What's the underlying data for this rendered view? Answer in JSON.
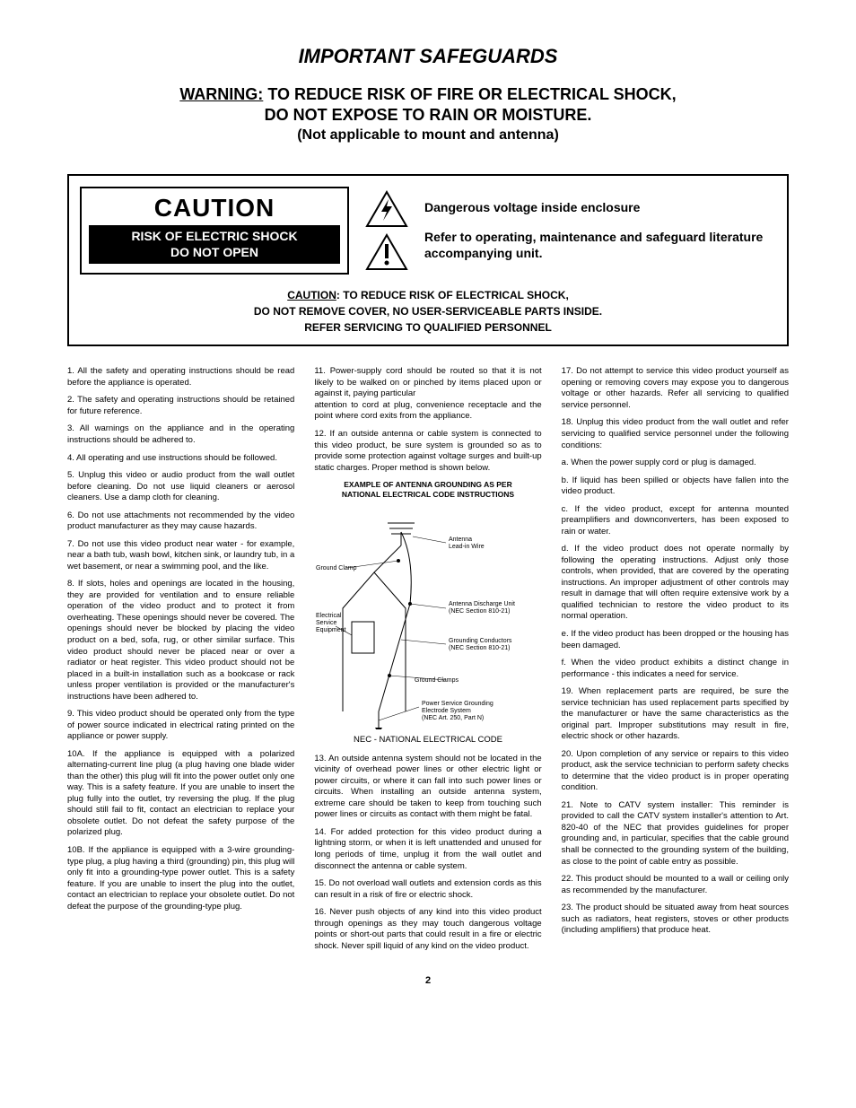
{
  "title": "IMPORTANT SAFEGUARDS",
  "warning_prefix": "WARNING:",
  "warning_line1": " TO REDUCE RISK OF FIRE OR ELECTRICAL SHOCK,",
  "warning_line2": "DO NOT EXPOSE TO RAIN OR MOISTURE.",
  "warning_sub": "(Not applicable to mount and antenna)",
  "caution_box_title": "CAUTION",
  "caution_box_line1": "RISK OF ELECTRIC SHOCK",
  "caution_box_line2": "DO NOT OPEN",
  "danger_text": "Dangerous voltage inside enclosure",
  "refer_text": "Refer to operating, maintenance and safeguard literature accompanying unit.",
  "caution_bottom_prefix": "CAUTION",
  "caution_bottom_rest1": ": TO REDUCE RISK OF ELECTRICAL SHOCK,",
  "caution_bottom_line2": "DO NOT REMOVE COVER, NO USER-SERVICEABLE PARTS INSIDE.",
  "caution_bottom_line3": "REFER SERVICING TO QUALIFIED PERSONNEL",
  "diagram_title_line1": "EXAMPLE OF ANTENNA GROUNDING AS PER",
  "diagram_title_line2": "NATIONAL ELECTRICAL CODE INSTRUCTIONS",
  "diagram_labels": {
    "antenna_lead": "Antenna Lead-in Wire",
    "ground_clamp": "Ground Clamp",
    "electrical_service": "Electrical Service Equipment",
    "discharge_unit": "Antenna Discharge Unit (NEC Section 810-21)",
    "grounding_conductors": "Grounding Conductors (NEC Section 810-21)",
    "ground_clamps": "Ground Clamps",
    "power_service": "Power Service Grounding Electrode System (NEC Art. 250, Part N)"
  },
  "diagram_caption": "NEC - NATIONAL ELECTRICAL CODE",
  "paragraphs_col1": [
    "1. All the safety and operating instructions should be read before the appliance is operated.",
    "2. The safety and operating instructions should be retained for future reference.",
    "3. All warnings on the appliance and in  the operating instructions should be adhered to.",
    "4. All operating and use instructions should be followed.",
    "5. Unplug this video or audio product from the wall outlet before cleaning. Do not use liquid cleaners or aerosol cleaners. Use a damp cloth for cleaning.",
    "6. Do not use attachments not recommended by the video product manufacturer as they may cause hazards.",
    "7. Do not use this video product near water - for example, near a bath tub, wash bowl, kitchen sink, or laundry tub, in a wet basement, or near a swimming pool, and the like.",
    "8. If slots, holes and openings are located in the housing, they are provided for ventilation and to ensure reliable operation of the video product and to protect it from overheating. These openings should never be covered. The openings should never be blocked by placing the video product on a bed, sofa, rug, or other similar surface. This video product should never be placed near or over a radiator or heat register. This video product should not be placed in a built-in installation such as a bookcase or rack unless proper ventilation is provided or the manufacturer's instructions have been adhered to.",
    "9. This video product should be operated only from the type of power source indicated in electrical rating printed on the appliance or power supply.",
    "10A. If the appliance is equipped with a polarized alternating-current line plug (a plug having one blade wider than the other) this plug will fit into the power outlet only one way. This is a safety feature. If you are unable to insert the plug fully into the outlet, try reversing the plug. If the plug should still fail to fit, contact an electrician to replace your obsolete outlet. Do not defeat the safety purpose of the polarized plug.",
    "10B. If the appliance is equipped with a 3-wire grounding-type plug, a plug having a third (grounding) pin, this plug will only fit into a grounding-type power outlet. This is a safety feature.  If you are unable to insert the plug into the outlet, contact an electrician to replace your obsolete outlet. Do not defeat the purpose of the grounding-type plug.",
    "11. Power-supply cord should be routed so that it is not likely to be walked on or pinched by items placed upon or against it, paying particular"
  ],
  "paragraphs_col2": [
    "attention to cord at plug, convenience receptacle and the point where cord exits from the appliance.",
    "12. If an outside antenna or cable system is connected to this video product, be sure system is grounded so as to provide some protection against voltage surges and built-up static charges. Proper method is shown below."
  ],
  "paragraphs_col2b": [
    "13. An outside antenna system should not be located in the vicinity of overhead power lines or other electric light or power circuits, or where it can fall into such power lines or circuits. When installing an outside antenna system, extreme care should be taken to keep from touching such power lines or circuits as contact with them might be fatal.",
    "14. For added protection for this video product during a lightning storm, or when it is left unattended and unused for long periods of time, unplug it from the wall outlet and disconnect the antenna or cable system.",
    "15. Do not overload wall outlets and extension cords as this can result in a risk of fire or electric shock.",
    "16. Never push objects of any kind into this video product through openings as they may touch dangerous voltage points or short-out parts that could result in a fire or electric shock. Never spill liquid of any kind on the video product."
  ],
  "paragraphs_col3": [
    "17. Do not attempt to service this video product yourself  as opening or removing covers may expose you to dangerous voltage or other hazards. Refer all servicing to qualified service personnel.",
    "18. Unplug this video product from the wall outlet and refer servicing to qualified service personnel under the following conditions:",
    "a. When  the power supply cord or plug is damaged.",
    "b. If liquid has been spilled or objects have fallen into the video product.",
    "c. If the video product, except for antenna mounted preamplifiers and downconverters, has been exposed to rain or water.",
    "d. If the video product does not operate normally by following the operating instructions. Adjust only those controls, when provided, that are covered by the operating instructions. An improper adjustment of other controls may result in damage that will often require extensive work by a qualified technician to restore the video product to its normal operation.",
    "e. If the video product has been dropped or the housing has been damaged.",
    "f. When the video product exhibits a distinct change in performance - this indicates a need for service.",
    "19. When replacement parts are required, be sure the service technician has used replacement parts specified by the manufacturer or have the same characteristics as the original part. Improper substitutions may result in fire, electric shock or other hazards.",
    "20. Upon completion of any service or repairs to this video product, ask the service technician to perform safety checks to determine that the video product is in proper operating condition.",
    "21.  Note to CATV system installer: This reminder is provided to call the CATV system installer's attention to Art. 820-40 of the NEC that provides guidelines for proper grounding and, in particular, specifies that the cable ground shall be connected to the grounding system of the building, as close to the point of cable entry as possible.",
    "22.  This product should be mounted to a wall or ceiling only as recommended by the manufacturer.",
    "23.  The product should be situated away from heat sources such as radiators, heat registers, stoves or other products (including amplifiers) that produce heat."
  ],
  "page_number": "2",
  "colors": {
    "border": "#000000",
    "text": "#000000",
    "bg": "#ffffff"
  }
}
